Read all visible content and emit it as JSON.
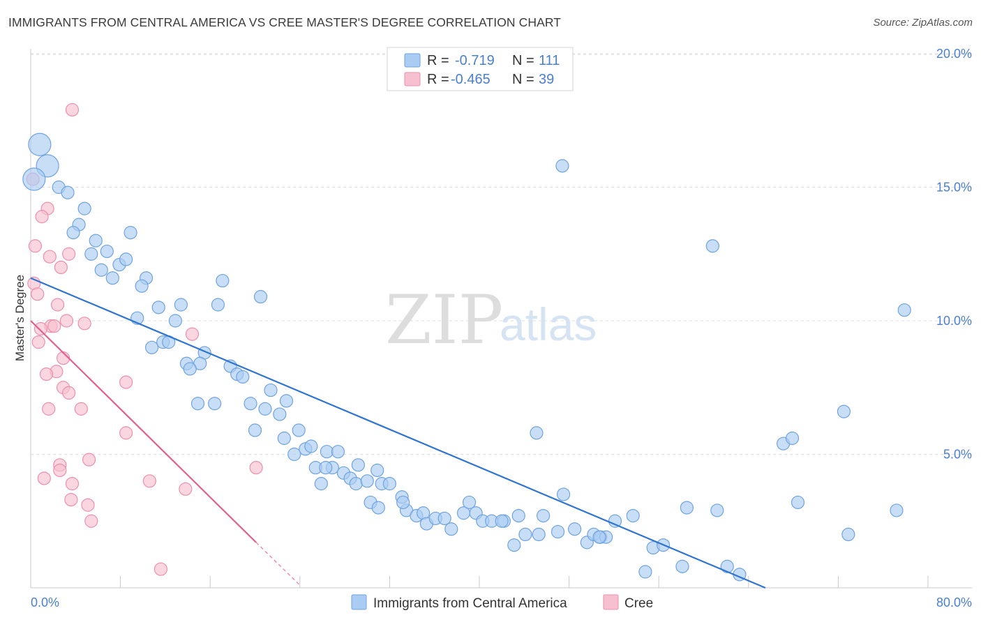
{
  "header": {
    "title": "IMMIGRANTS FROM CENTRAL AMERICA VS CREE MASTER'S DEGREE CORRELATION CHART",
    "source": "Source: ZipAtlas.com"
  },
  "watermark": {
    "zip": "ZIP",
    "atlas": "atlas"
  },
  "legend_box": {
    "rows": [
      {
        "r_label": "R =",
        "r_value": "-0.719",
        "n_label": "N =",
        "n_value": "111"
      },
      {
        "r_label": "R =",
        "r_value": "-0.465",
        "n_label": "N =",
        "n_value": "39"
      }
    ]
  },
  "bottom_legend": {
    "items": [
      {
        "label": "Immigrants from Central America"
      },
      {
        "label": "Cree"
      }
    ]
  },
  "colors": {
    "blue_fill": "#aaccf2",
    "blue_stroke": "#6fa3e0",
    "blue_line": "#2f74d0",
    "pink_fill": "#f7c0d0",
    "pink_stroke": "#ec8fae",
    "pink_line": "#e0608e",
    "accent_text": "#4a7fd1",
    "grid": "#dedede"
  },
  "chart_data": {
    "type": "scatter",
    "title": "IMMIGRANTS FROM CENTRAL AMERICA VS CREE MASTER'S DEGREE CORRELATION CHART",
    "xlabel": "",
    "ylabel": "Master's Degree",
    "xlim": [
      0,
      80
    ],
    "ylim": [
      0,
      20.5
    ],
    "x_tick_labels": [
      "0.0%",
      "80.0%"
    ],
    "y_ticks": [
      5,
      10,
      15,
      20
    ],
    "y_tick_labels": [
      "5.0%",
      "10.0%",
      "15.0%",
      "20.0%"
    ],
    "grid": true,
    "legend_position": "top-center",
    "series": [
      {
        "name": "Immigrants from Central America",
        "color": "#aaccf2",
        "r": -0.719,
        "n": 111,
        "trendline": {
          "x": [
            0,
            65.5
          ],
          "y": [
            11.6,
            0
          ]
        },
        "points": [
          {
            "x": 0.8,
            "y": 16.6,
            "big": true
          },
          {
            "x": 1.5,
            "y": 15.8,
            "big": true
          },
          {
            "x": 0.3,
            "y": 15.3,
            "big": true
          },
          {
            "x": 2.5,
            "y": 15.0
          },
          {
            "x": 3.3,
            "y": 14.8
          },
          {
            "x": 4.8,
            "y": 14.2
          },
          {
            "x": 4.3,
            "y": 13.6
          },
          {
            "x": 3.8,
            "y": 13.3
          },
          {
            "x": 5.8,
            "y": 13.0
          },
          {
            "x": 8.9,
            "y": 13.3
          },
          {
            "x": 6.8,
            "y": 12.6
          },
          {
            "x": 5.4,
            "y": 12.5
          },
          {
            "x": 7.9,
            "y": 12.1
          },
          {
            "x": 8.5,
            "y": 12.3
          },
          {
            "x": 6.3,
            "y": 11.9
          },
          {
            "x": 7.3,
            "y": 11.6
          },
          {
            "x": 10.3,
            "y": 11.6
          },
          {
            "x": 9.9,
            "y": 11.3
          },
          {
            "x": 17.1,
            "y": 11.5
          },
          {
            "x": 20.5,
            "y": 10.9
          },
          {
            "x": 11.4,
            "y": 10.5
          },
          {
            "x": 13.4,
            "y": 10.6
          },
          {
            "x": 16.7,
            "y": 10.6
          },
          {
            "x": 9.5,
            "y": 10.1
          },
          {
            "x": 12.9,
            "y": 10.0
          },
          {
            "x": 11.8,
            "y": 9.2
          },
          {
            "x": 12.3,
            "y": 9.2
          },
          {
            "x": 10.8,
            "y": 9.0
          },
          {
            "x": 15.5,
            "y": 8.8
          },
          {
            "x": 13.9,
            "y": 8.4
          },
          {
            "x": 15.1,
            "y": 8.4
          },
          {
            "x": 14.2,
            "y": 8.2
          },
          {
            "x": 17.8,
            "y": 8.3
          },
          {
            "x": 18.4,
            "y": 8.0
          },
          {
            "x": 18.9,
            "y": 7.9
          },
          {
            "x": 21.4,
            "y": 7.4
          },
          {
            "x": 14.9,
            "y": 6.9
          },
          {
            "x": 16.4,
            "y": 6.9
          },
          {
            "x": 19.6,
            "y": 6.9
          },
          {
            "x": 20.9,
            "y": 6.7
          },
          {
            "x": 22.2,
            "y": 6.5
          },
          {
            "x": 22.8,
            "y": 7.0
          },
          {
            "x": 23.9,
            "y": 5.9
          },
          {
            "x": 20.0,
            "y": 5.9
          },
          {
            "x": 22.6,
            "y": 5.6
          },
          {
            "x": 23.5,
            "y": 5.0
          },
          {
            "x": 24.5,
            "y": 5.2
          },
          {
            "x": 25.0,
            "y": 5.3
          },
          {
            "x": 26.4,
            "y": 5.1
          },
          {
            "x": 27.4,
            "y": 5.1
          },
          {
            "x": 25.4,
            "y": 4.5
          },
          {
            "x": 26.9,
            "y": 4.5
          },
          {
            "x": 27.9,
            "y": 4.3
          },
          {
            "x": 29.2,
            "y": 4.6
          },
          {
            "x": 30.9,
            "y": 4.4
          },
          {
            "x": 25.9,
            "y": 3.9
          },
          {
            "x": 28.5,
            "y": 4.1
          },
          {
            "x": 29.0,
            "y": 3.9
          },
          {
            "x": 30.0,
            "y": 4.0
          },
          {
            "x": 31.3,
            "y": 3.9
          },
          {
            "x": 32.0,
            "y": 3.9
          },
          {
            "x": 33.1,
            "y": 3.4
          },
          {
            "x": 30.3,
            "y": 3.2
          },
          {
            "x": 31.0,
            "y": 3.0
          },
          {
            "x": 33.5,
            "y": 2.9
          },
          {
            "x": 34.4,
            "y": 2.7
          },
          {
            "x": 35.0,
            "y": 2.8
          },
          {
            "x": 35.3,
            "y": 2.4
          },
          {
            "x": 36.1,
            "y": 2.6
          },
          {
            "x": 36.9,
            "y": 2.6
          },
          {
            "x": 37.5,
            "y": 2.2
          },
          {
            "x": 38.6,
            "y": 2.8
          },
          {
            "x": 39.1,
            "y": 3.2
          },
          {
            "x": 39.7,
            "y": 2.8
          },
          {
            "x": 40.3,
            "y": 2.5
          },
          {
            "x": 41.1,
            "y": 2.5
          },
          {
            "x": 42.2,
            "y": 2.5
          },
          {
            "x": 43.5,
            "y": 2.7
          },
          {
            "x": 44.1,
            "y": 2.0
          },
          {
            "x": 45.3,
            "y": 2.0
          },
          {
            "x": 45.7,
            "y": 2.7
          },
          {
            "x": 47.5,
            "y": 3.5
          },
          {
            "x": 48.5,
            "y": 2.2
          },
          {
            "x": 49.6,
            "y": 1.7
          },
          {
            "x": 50.2,
            "y": 2.0
          },
          {
            "x": 50.8,
            "y": 1.9
          },
          {
            "x": 51.3,
            "y": 1.9
          },
          {
            "x": 52.1,
            "y": 2.5
          },
          {
            "x": 53.7,
            "y": 2.7
          },
          {
            "x": 55.5,
            "y": 1.5
          },
          {
            "x": 56.4,
            "y": 1.6
          },
          {
            "x": 54.8,
            "y": 0.6
          },
          {
            "x": 58.1,
            "y": 0.8
          },
          {
            "x": 50.7,
            "y": 1.9
          },
          {
            "x": 47.0,
            "y": 2.1
          },
          {
            "x": 45.1,
            "y": 5.8
          },
          {
            "x": 43.1,
            "y": 1.6
          },
          {
            "x": 61.2,
            "y": 2.9
          },
          {
            "x": 62.1,
            "y": 0.8
          },
          {
            "x": 63.2,
            "y": 0.5
          },
          {
            "x": 58.5,
            "y": 3.0
          },
          {
            "x": 67.1,
            "y": 5.4
          },
          {
            "x": 67.9,
            "y": 5.6
          },
          {
            "x": 68.4,
            "y": 3.2
          },
          {
            "x": 72.5,
            "y": 6.6
          },
          {
            "x": 72.9,
            "y": 2.0
          },
          {
            "x": 77.9,
            "y": 10.4
          },
          {
            "x": 77.2,
            "y": 2.9
          },
          {
            "x": 60.8,
            "y": 12.8
          },
          {
            "x": 47.4,
            "y": 15.8
          },
          {
            "x": 33.2,
            "y": 3.2
          },
          {
            "x": 42.0,
            "y": 2.5
          },
          {
            "x": 26.3,
            "y": 4.5
          }
        ]
      },
      {
        "name": "Cree",
        "color": "#f7c0d0",
        "r": -0.465,
        "n": 39,
        "trendline": {
          "x": [
            0,
            20.1
          ],
          "y": [
            10.0,
            1.7
          ]
        },
        "trendline_dashed": {
          "x": [
            20.1,
            24.0
          ],
          "y": [
            1.7,
            0.1
          ]
        },
        "points": [
          {
            "x": 0.2,
            "y": 15.3
          },
          {
            "x": 3.7,
            "y": 17.9
          },
          {
            "x": 1.5,
            "y": 14.2
          },
          {
            "x": 1.0,
            "y": 13.9
          },
          {
            "x": 0.4,
            "y": 12.8
          },
          {
            "x": 1.7,
            "y": 12.4
          },
          {
            "x": 3.4,
            "y": 12.5
          },
          {
            "x": 2.7,
            "y": 12.0
          },
          {
            "x": 0.3,
            "y": 11.4
          },
          {
            "x": 0.6,
            "y": 11.0
          },
          {
            "x": 2.4,
            "y": 10.6
          },
          {
            "x": 3.2,
            "y": 10.0
          },
          {
            "x": 4.8,
            "y": 9.9
          },
          {
            "x": 1.8,
            "y": 9.8
          },
          {
            "x": 2.1,
            "y": 9.8
          },
          {
            "x": 0.9,
            "y": 9.7
          },
          {
            "x": 0.7,
            "y": 9.2
          },
          {
            "x": 2.9,
            "y": 8.6
          },
          {
            "x": 2.3,
            "y": 8.1
          },
          {
            "x": 1.4,
            "y": 8.0
          },
          {
            "x": 2.9,
            "y": 7.5
          },
          {
            "x": 3.4,
            "y": 7.3
          },
          {
            "x": 8.5,
            "y": 7.7
          },
          {
            "x": 14.4,
            "y": 9.5
          },
          {
            "x": 1.6,
            "y": 6.7
          },
          {
            "x": 4.5,
            "y": 6.7
          },
          {
            "x": 8.5,
            "y": 5.8
          },
          {
            "x": 2.6,
            "y": 4.6
          },
          {
            "x": 2.6,
            "y": 4.4
          },
          {
            "x": 5.2,
            "y": 4.8
          },
          {
            "x": 1.2,
            "y": 4.1
          },
          {
            "x": 3.7,
            "y": 3.9
          },
          {
            "x": 10.6,
            "y": 4.0
          },
          {
            "x": 13.8,
            "y": 3.7
          },
          {
            "x": 20.1,
            "y": 4.5
          },
          {
            "x": 3.6,
            "y": 3.3
          },
          {
            "x": 5.1,
            "y": 3.1
          },
          {
            "x": 5.4,
            "y": 2.5
          },
          {
            "x": 11.6,
            "y": 0.7
          }
        ]
      }
    ]
  }
}
